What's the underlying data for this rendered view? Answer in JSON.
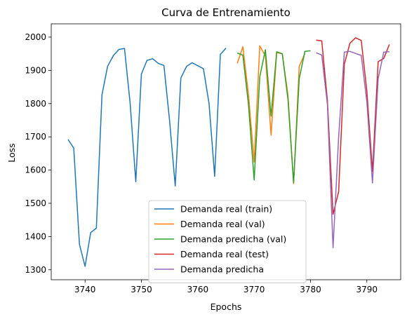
{
  "chart_data": {
    "type": "line",
    "title": "Curva de Entrenamiento",
    "xlabel": "Epochs",
    "ylabel": "Loss",
    "xlim": [
      3734,
      3796
    ],
    "ylim": [
      1270,
      2040
    ],
    "x_ticks": [
      3740,
      3750,
      3760,
      3770,
      3780,
      3790
    ],
    "y_ticks": [
      1300,
      1400,
      1500,
      1600,
      1700,
      1800,
      1900,
      2000
    ],
    "grid": false,
    "legend_position": "lower-center",
    "series": [
      {
        "name": "Demanda real (train)",
        "color": "#1f77b4",
        "x": [
          3737,
          3738,
          3739,
          3740,
          3741,
          3742,
          3743,
          3744,
          3745,
          3746,
          3747,
          3748,
          3749,
          3750,
          3751,
          3752,
          3753,
          3754,
          3755,
          3756,
          3757,
          3758,
          3759,
          3760,
          3761,
          3762,
          3763,
          3764,
          3765
        ],
        "y": [
          1692,
          1666,
          1377,
          1310,
          1412,
          1425,
          1826,
          1912,
          1944,
          1963,
          1966,
          1800,
          1565,
          1889,
          1930,
          1935,
          1921,
          1915,
          1748,
          1552,
          1877,
          1912,
          1923,
          1914,
          1905,
          1800,
          1581,
          1948,
          1967
        ]
      },
      {
        "name": "Demanda real (val)",
        "color": "#ff7f0e",
        "x": [
          3767,
          3768,
          3769,
          3770,
          3771,
          3772,
          3773,
          3774,
          3775,
          3776,
          3777,
          3778,
          3779
        ],
        "y": [
          1921,
          1971,
          1827,
          1624,
          1974,
          1943,
          1705,
          1953,
          1950,
          1825,
          1559,
          1912,
          1951
        ]
      },
      {
        "name": "Demanda predicha (val)",
        "color": "#2ca02c",
        "x": [
          3767,
          3768,
          3769,
          3770,
          3771,
          3772,
          3773,
          3774,
          3775,
          3776,
          3777,
          3778,
          3779,
          3780
        ],
        "y": [
          1952,
          1946,
          1797,
          1570,
          1881,
          1962,
          1762,
          1956,
          1950,
          1812,
          1562,
          1875,
          1957,
          1959
        ]
      },
      {
        "name": "Demanda real (test)",
        "color": "#d62728",
        "x": [
          3781,
          3782,
          3783,
          3784,
          3785,
          3786,
          3787,
          3788,
          3789,
          3790,
          3791,
          3792,
          3793,
          3794
        ],
        "y": [
          1991,
          1989,
          1809,
          1467,
          1535,
          1919,
          1982,
          1998,
          1990,
          1837,
          1596,
          1926,
          1936,
          1978
        ]
      },
      {
        "name": "Demanda predicha",
        "color": "#9467bd",
        "x": [
          3781,
          3782,
          3783,
          3784,
          3785,
          3786,
          3787,
          3788,
          3789,
          3790,
          3791,
          3792,
          3793,
          3794
        ],
        "y": [
          1953,
          1946,
          1797,
          1366,
          1700,
          1955,
          1957,
          1951,
          1945,
          1805,
          1561,
          1875,
          1955,
          1956
        ]
      }
    ]
  }
}
